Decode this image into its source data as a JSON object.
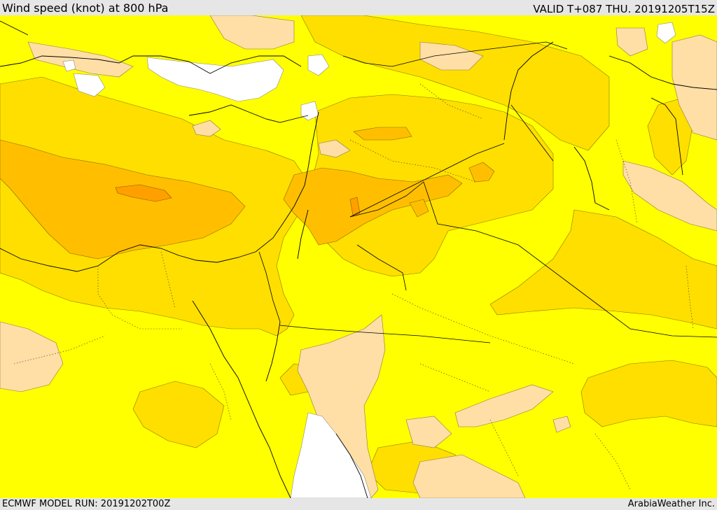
{
  "header": {
    "title": "Wind speed (knot) at 800 hPa",
    "valid": "VALID T+087 THU. 20191205T15Z"
  },
  "footer": {
    "model_run": "ECMWF MODEL RUN: 20191202T00Z",
    "credit": "ArabiaWeather Inc."
  },
  "map": {
    "colors": {
      "calm": "#ffffff",
      "light": "#ffdfa6",
      "moderate": "#ffff00",
      "fresh": "#ffdf00",
      "strong": "#ffbf00",
      "very_strong": "#ff9f00",
      "coastline": "#000000",
      "border": "#000000"
    }
  }
}
